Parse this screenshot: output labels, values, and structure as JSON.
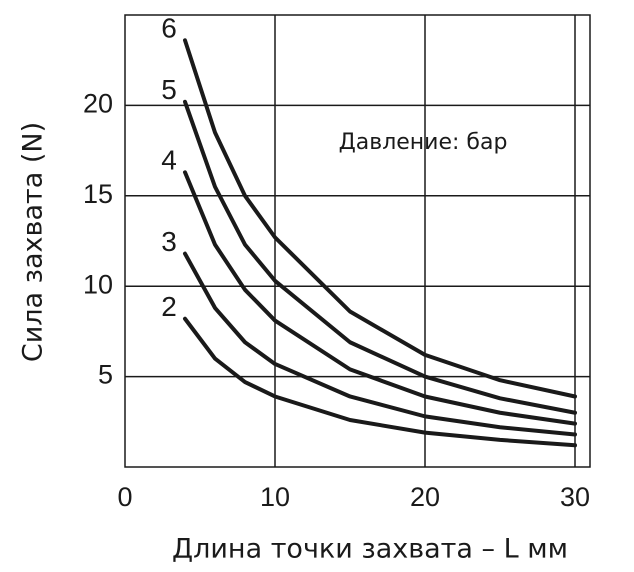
{
  "chart_data": {
    "type": "line",
    "annotation": "Давление: бар",
    "x_label": "Длина точки захвата – L мм",
    "y_label": "Сила захвата (N)",
    "x": [
      4,
      6,
      8,
      10,
      15,
      20,
      25,
      30
    ],
    "series": [
      {
        "name": "2",
        "color": "#1a1a1a",
        "values": [
          8.2,
          6.0,
          4.7,
          3.9,
          2.6,
          1.9,
          1.5,
          1.2
        ]
      },
      {
        "name": "3",
        "color": "#1a1a1a",
        "values": [
          11.8,
          8.8,
          6.9,
          5.7,
          3.9,
          2.8,
          2.2,
          1.8
        ]
      },
      {
        "name": "4",
        "color": "#1a1a1a",
        "values": [
          16.3,
          12.3,
          9.8,
          8.1,
          5.4,
          3.9,
          3.0,
          2.4
        ]
      },
      {
        "name": "5",
        "color": "#1a1a1a",
        "values": [
          20.2,
          15.5,
          12.3,
          10.3,
          6.9,
          5.0,
          3.8,
          3.0
        ]
      },
      {
        "name": "6",
        "color": "#1a1a1a",
        "values": [
          23.6,
          18.5,
          15.0,
          12.7,
          8.6,
          6.2,
          4.8,
          3.9
        ]
      }
    ],
    "xlim": [
      0,
      31
    ],
    "ylim": [
      0,
      25
    ],
    "xticks": [
      0,
      10,
      20,
      30
    ],
    "yticks": [
      5,
      10,
      15,
      20
    ],
    "grid": true
  }
}
